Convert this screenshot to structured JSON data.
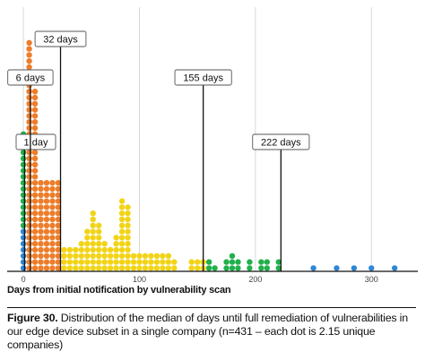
{
  "chart_data": {
    "type": "dot-plot",
    "xlabel": "Days from initial notification by vulnerability scan",
    "xticks": [
      0,
      100,
      200,
      300
    ],
    "xlim": [
      -14,
      340
    ],
    "grid": "vertical",
    "colors": {
      "blue": "#2f86d4",
      "green": "#21b04b",
      "orange": "#ee7d2a",
      "yellow": "#f2d417"
    },
    "stacks": [
      {
        "x": 0,
        "segments": [
          [
            "blue",
            7
          ],
          [
            "green",
            16
          ],
          [
            "orange",
            0
          ]
        ]
      },
      {
        "x": 5,
        "segments": [
          [
            "orange",
            38
          ]
        ]
      },
      {
        "x": 10,
        "segments": [
          [
            "orange",
            30
          ]
        ]
      },
      {
        "x": 15,
        "segments": [
          [
            "orange",
            15
          ]
        ]
      },
      {
        "x": 20,
        "segments": [
          [
            "orange",
            15
          ]
        ]
      },
      {
        "x": 25,
        "segments": [
          [
            "orange",
            15
          ]
        ]
      },
      {
        "x": 30,
        "segments": [
          [
            "orange",
            15
          ]
        ]
      },
      {
        "x": 35,
        "segments": [
          [
            "yellow",
            4
          ]
        ]
      },
      {
        "x": 40,
        "segments": [
          [
            "yellow",
            4
          ]
        ]
      },
      {
        "x": 45,
        "segments": [
          [
            "yellow",
            4
          ]
        ]
      },
      {
        "x": 50,
        "segments": [
          [
            "yellow",
            5
          ]
        ]
      },
      {
        "x": 55,
        "segments": [
          [
            "yellow",
            7
          ]
        ]
      },
      {
        "x": 60,
        "segments": [
          [
            "yellow",
            10
          ]
        ]
      },
      {
        "x": 65,
        "segments": [
          [
            "yellow",
            8
          ]
        ]
      },
      {
        "x": 70,
        "segments": [
          [
            "yellow",
            5
          ]
        ]
      },
      {
        "x": 75,
        "segments": [
          [
            "yellow",
            4
          ]
        ]
      },
      {
        "x": 80,
        "segments": [
          [
            "yellow",
            6
          ]
        ]
      },
      {
        "x": 85,
        "segments": [
          [
            "yellow",
            12
          ]
        ]
      },
      {
        "x": 90,
        "segments": [
          [
            "yellow",
            11
          ]
        ]
      },
      {
        "x": 95,
        "segments": [
          [
            "yellow",
            3
          ]
        ]
      },
      {
        "x": 100,
        "segments": [
          [
            "yellow",
            3
          ]
        ]
      },
      {
        "x": 105,
        "segments": [
          [
            "yellow",
            3
          ]
        ]
      },
      {
        "x": 110,
        "segments": [
          [
            "yellow",
            3
          ]
        ]
      },
      {
        "x": 115,
        "segments": [
          [
            "yellow",
            3
          ]
        ]
      },
      {
        "x": 120,
        "segments": [
          [
            "yellow",
            3
          ]
        ]
      },
      {
        "x": 125,
        "segments": [
          [
            "yellow",
            3
          ]
        ]
      },
      {
        "x": 130,
        "segments": [
          [
            "yellow",
            2
          ]
        ]
      },
      {
        "x": 145,
        "segments": [
          [
            "yellow",
            2
          ]
        ]
      },
      {
        "x": 150,
        "segments": [
          [
            "yellow",
            2
          ]
        ]
      },
      {
        "x": 155,
        "segments": [
          [
            "yellow",
            2
          ]
        ]
      },
      {
        "x": 160,
        "segments": [
          [
            "green",
            2
          ]
        ]
      },
      {
        "x": 165,
        "segments": [
          [
            "green",
            1
          ]
        ]
      },
      {
        "x": 175,
        "segments": [
          [
            "green",
            2
          ]
        ]
      },
      {
        "x": 180,
        "segments": [
          [
            "green",
            3
          ]
        ]
      },
      {
        "x": 185,
        "segments": [
          [
            "green",
            2
          ]
        ]
      },
      {
        "x": 195,
        "segments": [
          [
            "green",
            2
          ]
        ]
      },
      {
        "x": 205,
        "segments": [
          [
            "green",
            2
          ]
        ]
      },
      {
        "x": 210,
        "segments": [
          [
            "green",
            2
          ]
        ]
      },
      {
        "x": 220,
        "segments": [
          [
            "green",
            2
          ]
        ]
      },
      {
        "x": 250,
        "segments": [
          [
            "blue",
            1
          ]
        ]
      },
      {
        "x": 270,
        "segments": [
          [
            "blue",
            1
          ]
        ]
      },
      {
        "x": 285,
        "segments": [
          [
            "blue",
            1
          ]
        ]
      },
      {
        "x": 300,
        "segments": [
          [
            "blue",
            1
          ]
        ]
      },
      {
        "x": 320,
        "segments": [
          [
            "blue",
            1
          ]
        ]
      }
    ],
    "annotations": [
      {
        "label": "1 day",
        "x": 1
      },
      {
        "label": "6 days",
        "x": 6
      },
      {
        "label": "32 days",
        "x": 32
      },
      {
        "label": "155 days",
        "x": 155
      },
      {
        "label": "222 days",
        "x": 222
      }
    ]
  },
  "caption": {
    "figure_label": "Figure 30.",
    "text": "Distribution of the median of days until full remediation of vulnerabilities in our edge device subset in a single company (n=431 – each dot is 2.15 unique companies)"
  }
}
